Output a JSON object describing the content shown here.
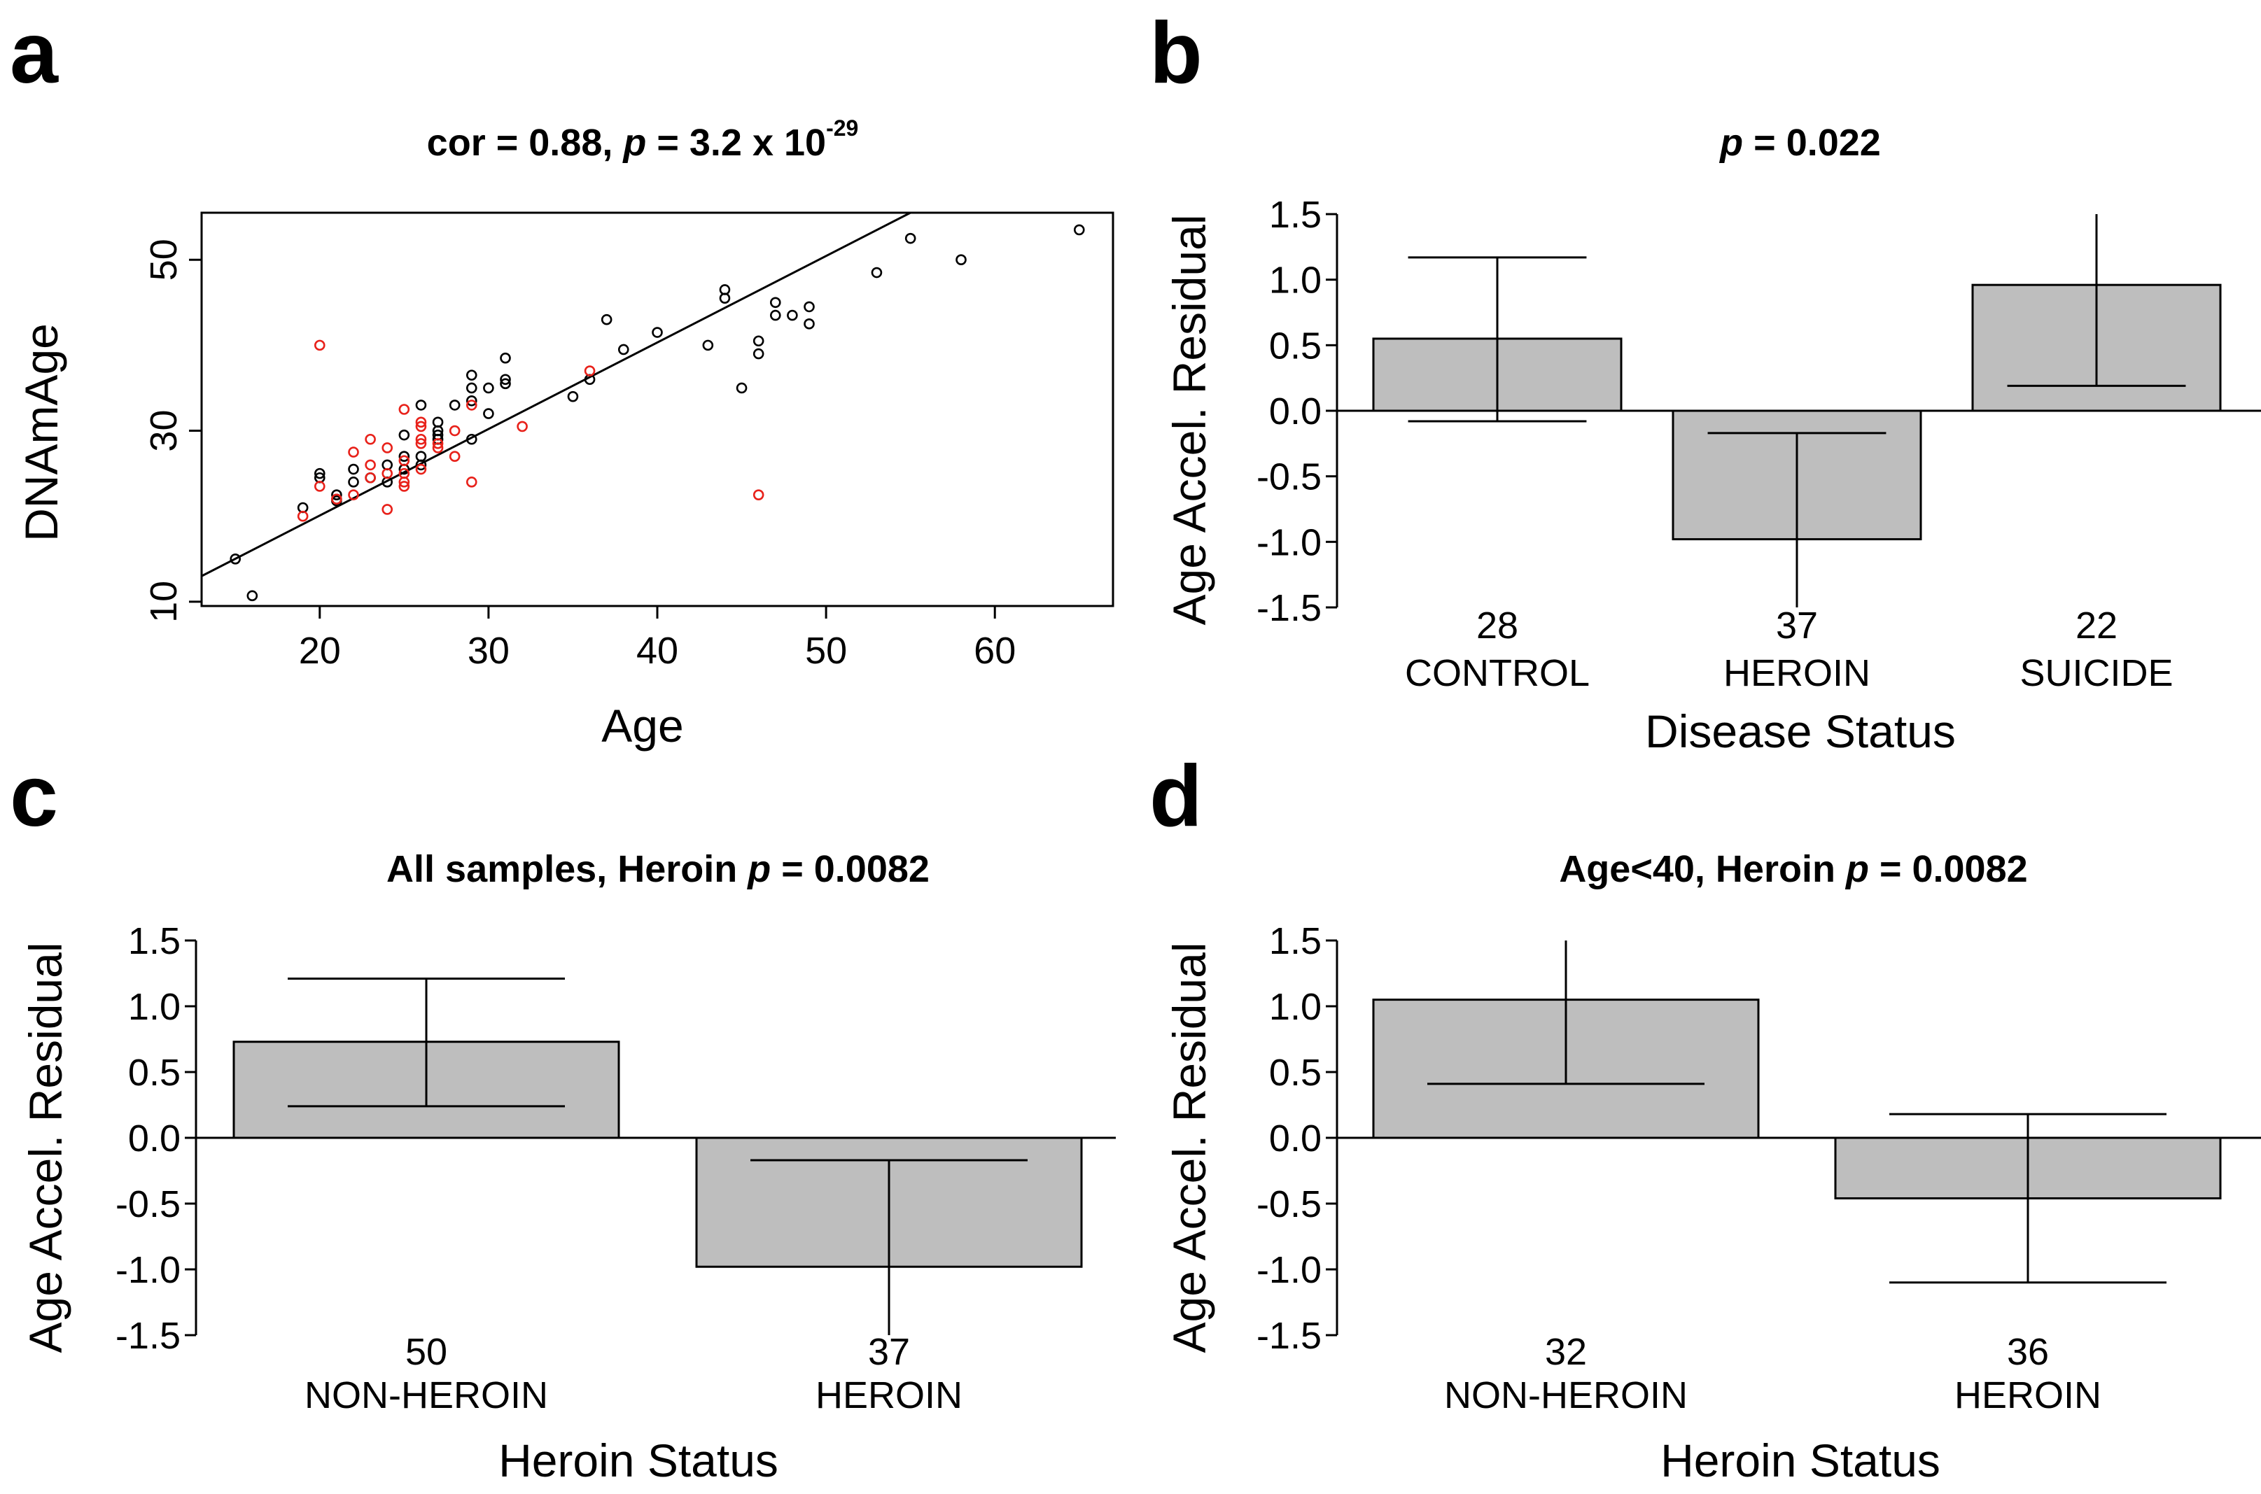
{
  "chart_data": [
    {
      "type": "scatter",
      "panel_label": "a",
      "title_cor": "cor = 0.88, ",
      "title_p": "p",
      "title_eq": " = 3.2 x 10",
      "title_exp": "-29",
      "xlabel": "Age",
      "ylabel": "DNAmAge",
      "xticks": [
        20,
        30,
        40,
        50,
        60
      ],
      "yticks": [
        10,
        30,
        50
      ],
      "xlim": [
        13,
        67
      ],
      "ylim": [
        9.5,
        55.5
      ],
      "fit_line": [
        [
          13,
          13
        ],
        [
          55,
          55.5
        ]
      ],
      "series": [
        {
          "name": "black",
          "color": "#000000",
          "points": [
            [
              15,
              15
            ],
            [
              16,
              10.7
            ],
            [
              19,
              21
            ],
            [
              20,
              25
            ],
            [
              20,
              24.5
            ],
            [
              21,
              22.5
            ],
            [
              21,
              22
            ],
            [
              21,
              21.8
            ],
            [
              22,
              24
            ],
            [
              22,
              25.5
            ],
            [
              23,
              24.5
            ],
            [
              24,
              24
            ],
            [
              24,
              26
            ],
            [
              25,
              25.5
            ],
            [
              25,
              27
            ],
            [
              25,
              29.5
            ],
            [
              26,
              27
            ],
            [
              26,
              33
            ],
            [
              26,
              26
            ],
            [
              27,
              31
            ],
            [
              27,
              30
            ],
            [
              27,
              29.5
            ],
            [
              27,
              29
            ],
            [
              28,
              33
            ],
            [
              29,
              33.5
            ],
            [
              29,
              36.5
            ],
            [
              29,
              35
            ],
            [
              29,
              29
            ],
            [
              30,
              32
            ],
            [
              30,
              35
            ],
            [
              31,
              35.5
            ],
            [
              31,
              36
            ],
            [
              31,
              38.5
            ],
            [
              35,
              34
            ],
            [
              36,
              36
            ],
            [
              37,
              43
            ],
            [
              38,
              39.5
            ],
            [
              40,
              41.5
            ],
            [
              43,
              40
            ],
            [
              44,
              46.5
            ],
            [
              44,
              45.5
            ],
            [
              45,
              35
            ],
            [
              46,
              40.5
            ],
            [
              46,
              39
            ],
            [
              47,
              45
            ],
            [
              47,
              43.5
            ],
            [
              48,
              43.5
            ],
            [
              49,
              44.5
            ],
            [
              49,
              42.5
            ],
            [
              53,
              48.5
            ],
            [
              55,
              52.5
            ],
            [
              58,
              50
            ],
            [
              65,
              53.5
            ]
          ]
        },
        {
          "name": "red",
          "color": "#e8211a",
          "points": [
            [
              19,
              20
            ],
            [
              20,
              40
            ],
            [
              20,
              23.5
            ],
            [
              21,
              22
            ],
            [
              22,
              22.5
            ],
            [
              22,
              27.5
            ],
            [
              23,
              26
            ],
            [
              23,
              29
            ],
            [
              23,
              24.5
            ],
            [
              24,
              25
            ],
            [
              24,
              28
            ],
            [
              24,
              20.8
            ],
            [
              25,
              26.5
            ],
            [
              25,
              25
            ],
            [
              25,
              24
            ],
            [
              25,
              32.5
            ],
            [
              25,
              23.5
            ],
            [
              26,
              28.5
            ],
            [
              26,
              25.5
            ],
            [
              26,
              29
            ],
            [
              26,
              31
            ],
            [
              26,
              30.5
            ],
            [
              27,
              28.5
            ],
            [
              27,
              28
            ],
            [
              28,
              30
            ],
            [
              28,
              27
            ],
            [
              29,
              24
            ],
            [
              29,
              33
            ],
            [
              32,
              30.5
            ],
            [
              36,
              37
            ],
            [
              46,
              22.5
            ]
          ]
        }
      ]
    },
    {
      "type": "bar",
      "panel_label": "b",
      "title_p": "p",
      "title_rest": " = 0.022",
      "xlabel": "Disease Status",
      "ylabel": "Age Accel. Residual",
      "yticks": [
        "1.5",
        "1.0",
        "0.5",
        "0.0",
        "-0.5",
        "-1.0",
        "-1.5"
      ],
      "ylim": [
        -1.5,
        1.5
      ],
      "bar_color": "#bebebe",
      "categories": [
        {
          "label": "CONTROL",
          "n": "28",
          "value": 0.55,
          "err_low": -0.08,
          "err_high": 1.17
        },
        {
          "label": "HEROIN",
          "n": "37",
          "value": -0.98,
          "err_low": -1.5,
          "err_high": -0.17
        },
        {
          "label": "SUICIDE",
          "n": "22",
          "value": 0.96,
          "err_low": 0.19,
          "err_high": 1.5
        }
      ]
    },
    {
      "type": "bar",
      "panel_label": "c",
      "title_pre": "All samples, Heroin ",
      "title_p": "p",
      "title_rest": " = 0.0082",
      "xlabel": "Heroin Status",
      "ylabel": "Age Accel. Residual",
      "yticks": [
        "1.5",
        "1.0",
        "0.5",
        "0.0",
        "-0.5",
        "-1.0",
        "-1.5"
      ],
      "ylim": [
        -1.5,
        1.5
      ],
      "bar_color": "#bebebe",
      "categories": [
        {
          "label": "NON-HEROIN",
          "n": "50",
          "value": 0.73,
          "err_low": 0.24,
          "err_high": 1.21
        },
        {
          "label": "HEROIN",
          "n": "37",
          "value": -0.98,
          "err_low": -1.5,
          "err_high": -0.17
        }
      ]
    },
    {
      "type": "bar",
      "panel_label": "d",
      "title_pre": "Age<40, Heroin ",
      "title_p": "p",
      "title_rest": " = 0.0082",
      "xlabel": "Heroin Status",
      "ylabel": "Age Accel. Residual",
      "yticks": [
        "1.5",
        "1.0",
        "0.5",
        "0.0",
        "-0.5",
        "-1.0",
        "-1.5"
      ],
      "ylim": [
        -1.5,
        1.5
      ],
      "bar_color": "#bebebe",
      "categories": [
        {
          "label": "NON-HEROIN",
          "n": "32",
          "value": 1.05,
          "err_low": 0.41,
          "err_high": 1.5
        },
        {
          "label": "HEROIN",
          "n": "36",
          "value": -0.46,
          "err_low": -1.1,
          "err_high": 0.18
        }
      ]
    }
  ]
}
